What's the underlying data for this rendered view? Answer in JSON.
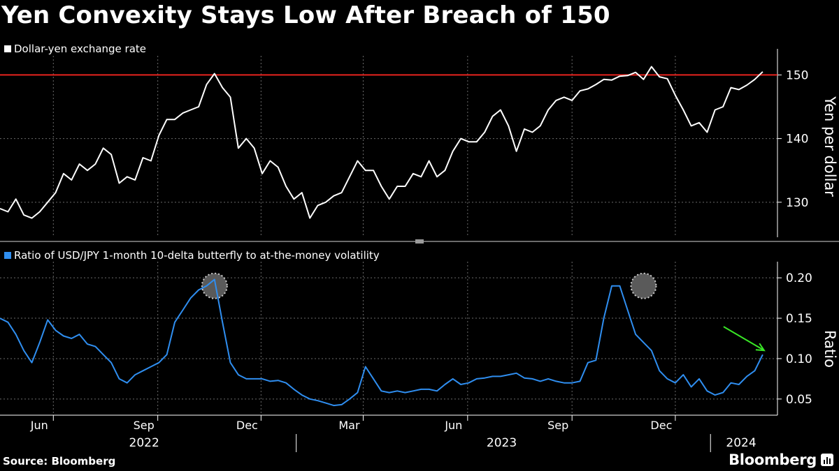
{
  "title": "Yen Convexity Stays Low After Breach of 150",
  "source": "Source: Bloomberg",
  "brand": "Bloomberg",
  "colors": {
    "background": "#000000",
    "usdjpy_line": "#ffffff",
    "ratio_line": "#2f8ef0",
    "threshold_line": "#e8231e",
    "annotation_arrow": "#39e626",
    "highlight_circle": "#5a5a5a",
    "grid": "#6b6b6b"
  },
  "chart_data": [
    {
      "type": "line",
      "title": "Yen Convexity Stays Low After Breach of 150",
      "legend": "Dollar-yen exchange rate",
      "ylabel": "Yen per dollar",
      "ylim": [
        124.5,
        153
      ],
      "yticks": [
        130,
        140,
        150
      ],
      "xlim": [
        "2022-04-15",
        "2024-02-29"
      ],
      "reference_line": {
        "value": 150,
        "label": "150"
      },
      "series": [
        {
          "name": "Dollar-yen exchange rate",
          "x": [
            "2022-04-15",
            "2022-04-22",
            "2022-04-29",
            "2022-05-06",
            "2022-05-13",
            "2022-05-20",
            "2022-05-27",
            "2022-06-03",
            "2022-06-10",
            "2022-06-17",
            "2022-06-24",
            "2022-07-01",
            "2022-07-08",
            "2022-07-15",
            "2022-07-22",
            "2022-07-29",
            "2022-08-05",
            "2022-08-12",
            "2022-08-19",
            "2022-08-26",
            "2022-09-02",
            "2022-09-09",
            "2022-09-16",
            "2022-09-23",
            "2022-09-30",
            "2022-10-07",
            "2022-10-14",
            "2022-10-21",
            "2022-10-28",
            "2022-11-04",
            "2022-11-11",
            "2022-11-18",
            "2022-11-25",
            "2022-12-02",
            "2022-12-09",
            "2022-12-16",
            "2022-12-23",
            "2022-12-30",
            "2023-01-06",
            "2023-01-13",
            "2023-01-20",
            "2023-01-27",
            "2023-02-03",
            "2023-02-10",
            "2023-02-17",
            "2023-02-24",
            "2023-03-03",
            "2023-03-10",
            "2023-03-17",
            "2023-03-24",
            "2023-03-31",
            "2023-04-07",
            "2023-04-14",
            "2023-04-21",
            "2023-04-28",
            "2023-05-05",
            "2023-05-12",
            "2023-05-19",
            "2023-05-26",
            "2023-06-02",
            "2023-06-09",
            "2023-06-16",
            "2023-06-23",
            "2023-06-30",
            "2023-07-07",
            "2023-07-14",
            "2023-07-21",
            "2023-07-28",
            "2023-08-04",
            "2023-08-11",
            "2023-08-18",
            "2023-08-25",
            "2023-09-01",
            "2023-09-08",
            "2023-09-15",
            "2023-09-22",
            "2023-09-29",
            "2023-10-06",
            "2023-10-13",
            "2023-10-20",
            "2023-10-27",
            "2023-11-03",
            "2023-11-10",
            "2023-11-17",
            "2023-11-24",
            "2023-12-01",
            "2023-12-08",
            "2023-12-15",
            "2023-12-22",
            "2023-12-29",
            "2024-01-05",
            "2024-01-12",
            "2024-01-19",
            "2024-01-26",
            "2024-02-02",
            "2024-02-09",
            "2024-02-16"
          ],
          "values": [
            129.0,
            128.5,
            130.5,
            128.0,
            127.5,
            128.5,
            130.0,
            131.5,
            134.5,
            133.5,
            136.0,
            135.0,
            136.0,
            138.5,
            137.5,
            133.0,
            134.0,
            133.5,
            137.0,
            136.5,
            140.5,
            143.0,
            143.0,
            144.0,
            144.5,
            145.0,
            148.5,
            150.2,
            148.0,
            146.5,
            138.5,
            140.0,
            138.5,
            134.5,
            136.5,
            135.5,
            132.5,
            130.5,
            131.5,
            127.5,
            129.5,
            130.0,
            131.0,
            131.5,
            134.0,
            136.5,
            135.0,
            135.0,
            132.5,
            130.5,
            132.5,
            132.5,
            134.5,
            134.0,
            136.5,
            134.0,
            135.0,
            138.0,
            140.0,
            139.5,
            139.5,
            141.0,
            143.5,
            144.5,
            142.0,
            138.0,
            141.5,
            141.0,
            142.0,
            144.5,
            146.0,
            146.5,
            146.0,
            147.5,
            147.8,
            148.5,
            149.3,
            149.2,
            149.8,
            149.9,
            150.4,
            149.3,
            151.3,
            149.7,
            149.4,
            146.8,
            144.5,
            142.0,
            142.5,
            141.0,
            144.5,
            145.0,
            148.0,
            147.7,
            148.4,
            149.3,
            150.5
          ]
        }
      ]
    },
    {
      "type": "line",
      "legend": "Ratio of USD/JPY 1-month 10-delta butterfly to at-the-money volatility",
      "ylabel": "Ratio",
      "ylim": [
        0.03,
        0.22
      ],
      "yticks": [
        0.05,
        0.1,
        0.15,
        0.2
      ],
      "ytick_labels": [
        "0.05",
        "0.10",
        "0.15",
        "0.20"
      ],
      "xlim": [
        "2022-04-15",
        "2024-02-29"
      ],
      "annotations": [
        {
          "type": "highlight-circle",
          "x": "2022-10-21",
          "y": 0.19
        },
        {
          "type": "highlight-circle",
          "x": "2023-11-03",
          "y": 0.19
        },
        {
          "type": "arrow",
          "x": "2024-02-16",
          "y": 0.105
        }
      ],
      "series": [
        {
          "name": "Ratio of USD/JPY 1-month 10-delta butterfly to at-the-money volatility",
          "x": [
            "2022-04-15",
            "2022-04-22",
            "2022-04-29",
            "2022-05-06",
            "2022-05-13",
            "2022-05-20",
            "2022-05-27",
            "2022-06-03",
            "2022-06-10",
            "2022-06-17",
            "2022-06-24",
            "2022-07-01",
            "2022-07-08",
            "2022-07-15",
            "2022-07-22",
            "2022-07-29",
            "2022-08-05",
            "2022-08-12",
            "2022-08-19",
            "2022-08-26",
            "2022-09-02",
            "2022-09-09",
            "2022-09-16",
            "2022-09-23",
            "2022-09-30",
            "2022-10-07",
            "2022-10-14",
            "2022-10-21",
            "2022-10-28",
            "2022-11-04",
            "2022-11-11",
            "2022-11-18",
            "2022-11-25",
            "2022-12-02",
            "2022-12-09",
            "2022-12-16",
            "2022-12-23",
            "2022-12-30",
            "2023-01-06",
            "2023-01-13",
            "2023-01-20",
            "2023-01-27",
            "2023-02-03",
            "2023-02-10",
            "2023-02-17",
            "2023-02-24",
            "2023-03-03",
            "2023-03-10",
            "2023-03-17",
            "2023-03-24",
            "2023-03-31",
            "2023-04-07",
            "2023-04-14",
            "2023-04-21",
            "2023-04-28",
            "2023-05-05",
            "2023-05-12",
            "2023-05-19",
            "2023-05-26",
            "2023-06-02",
            "2023-06-09",
            "2023-06-16",
            "2023-06-23",
            "2023-06-30",
            "2023-07-07",
            "2023-07-14",
            "2023-07-21",
            "2023-07-28",
            "2023-08-04",
            "2023-08-11",
            "2023-08-18",
            "2023-08-25",
            "2023-09-01",
            "2023-09-08",
            "2023-09-15",
            "2023-09-22",
            "2023-09-29",
            "2023-10-06",
            "2023-10-13",
            "2023-10-20",
            "2023-10-27",
            "2023-11-03",
            "2023-11-10",
            "2023-11-17",
            "2023-11-24",
            "2023-12-01",
            "2023-12-08",
            "2023-12-15",
            "2023-12-22",
            "2023-12-29",
            "2024-01-05",
            "2024-01-12",
            "2024-01-19",
            "2024-01-26",
            "2024-02-02",
            "2024-02-09",
            "2024-02-16"
          ],
          "values": [
            0.15,
            0.145,
            0.13,
            0.11,
            0.095,
            0.12,
            0.148,
            0.135,
            0.128,
            0.125,
            0.13,
            0.118,
            0.115,
            0.105,
            0.095,
            0.075,
            0.07,
            0.08,
            0.085,
            0.09,
            0.095,
            0.105,
            0.145,
            0.16,
            0.175,
            0.185,
            0.19,
            0.198,
            0.145,
            0.095,
            0.08,
            0.075,
            0.075,
            0.075,
            0.072,
            0.073,
            0.07,
            0.062,
            0.055,
            0.05,
            0.048,
            0.045,
            0.042,
            0.043,
            0.05,
            0.058,
            0.09,
            0.075,
            0.06,
            0.058,
            0.06,
            0.058,
            0.06,
            0.062,
            0.062,
            0.06,
            0.068,
            0.075,
            0.068,
            0.07,
            0.075,
            0.076,
            0.078,
            0.078,
            0.08,
            0.082,
            0.076,
            0.075,
            0.072,
            0.075,
            0.072,
            0.07,
            0.07,
            0.072,
            0.095,
            0.098,
            0.15,
            0.19,
            0.19,
            0.16,
            0.13,
            0.12,
            0.11,
            0.085,
            0.075,
            0.07,
            0.08,
            0.065,
            0.075,
            0.06,
            0.055,
            0.058,
            0.07,
            0.068,
            0.078,
            0.085,
            0.105
          ]
        }
      ]
    }
  ],
  "x_axis": {
    "month_ticks": [
      {
        "date": "2022-06-01",
        "label": "Jun"
      },
      {
        "date": "2022-09-01",
        "label": "Sep"
      },
      {
        "date": "2022-12-01",
        "label": "Dec"
      },
      {
        "date": "2023-03-01",
        "label": "Mar"
      },
      {
        "date": "2023-06-01",
        "label": "Jun"
      },
      {
        "date": "2023-09-01",
        "label": "Sep"
      },
      {
        "date": "2023-12-01",
        "label": "Dec"
      }
    ],
    "year_labels": [
      {
        "label": "2022",
        "center": "2022-08-20"
      },
      {
        "label": "2023",
        "center": "2023-07-01"
      },
      {
        "label": "2024",
        "center": "2024-01-28"
      }
    ],
    "year_separators": [
      "2023-01-01",
      "2024-01-01"
    ]
  }
}
